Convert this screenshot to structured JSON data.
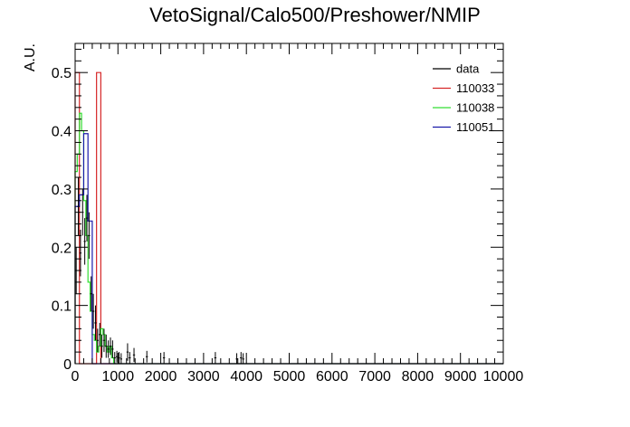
{
  "chart_data": {
    "type": "histogram",
    "title": "VetoSignal/Calo500/Preshower/NMIP",
    "ylabel": "A.U.",
    "xlabel": "",
    "xlim": [
      0,
      10000
    ],
    "ylim": [
      0,
      0.55
    ],
    "x_ticks": [
      0,
      1000,
      2000,
      3000,
      4000,
      5000,
      6000,
      7000,
      8000,
      9000,
      10000
    ],
    "y_ticks": [
      0,
      0.1,
      0.2,
      0.3,
      0.4,
      0.5
    ],
    "y_tick_labels": [
      "0",
      "0.1",
      "0.2",
      "0.3",
      "0.4",
      "0.5"
    ],
    "grid": false,
    "legend_position": "top-right",
    "series": [
      {
        "name": "data",
        "color": "#000000",
        "kind": "points",
        "points": [
          {
            "x": 25,
            "y": 0.16,
            "xerr": 25,
            "yerr": 0.04
          },
          {
            "x": 75,
            "y": 0.27,
            "xerr": 25,
            "yerr": 0.05
          },
          {
            "x": 125,
            "y": 0.19,
            "xerr": 25,
            "yerr": 0.04
          },
          {
            "x": 175,
            "y": 0.26,
            "xerr": 25,
            "yerr": 0.04
          },
          {
            "x": 225,
            "y": 0.21,
            "xerr": 25,
            "yerr": 0.04
          },
          {
            "x": 275,
            "y": 0.25,
            "xerr": 25,
            "yerr": 0.04
          },
          {
            "x": 325,
            "y": 0.22,
            "xerr": 25,
            "yerr": 0.04
          },
          {
            "x": 375,
            "y": 0.12,
            "xerr": 25,
            "yerr": 0.03
          },
          {
            "x": 425,
            "y": 0.09,
            "xerr": 25,
            "yerr": 0.03
          },
          {
            "x": 475,
            "y": 0.07,
            "xerr": 25,
            "yerr": 0.03
          },
          {
            "x": 525,
            "y": 0.04,
            "xerr": 25,
            "yerr": 0.02
          },
          {
            "x": 575,
            "y": 0.05,
            "xerr": 25,
            "yerr": 0.02
          },
          {
            "x": 625,
            "y": 0.03,
            "xerr": 25,
            "yerr": 0.02
          },
          {
            "x": 675,
            "y": 0.04,
            "xerr": 25,
            "yerr": 0.02
          },
          {
            "x": 725,
            "y": 0.03,
            "xerr": 25,
            "yerr": 0.02
          },
          {
            "x": 775,
            "y": 0.025,
            "xerr": 25,
            "yerr": 0.015
          },
          {
            "x": 825,
            "y": 0.03,
            "xerr": 25,
            "yerr": 0.015
          },
          {
            "x": 875,
            "y": 0.025,
            "xerr": 25,
            "yerr": 0.015
          },
          {
            "x": 925,
            "y": 0.01,
            "xerr": 25,
            "yerr": 0.01
          },
          {
            "x": 975,
            "y": 0.012,
            "xerr": 25,
            "yerr": 0.01
          },
          {
            "x": 1025,
            "y": 0.01,
            "xerr": 25,
            "yerr": 0.01
          },
          {
            "x": 1075,
            "y": 0.008,
            "xerr": 25,
            "yerr": 0.01
          },
          {
            "x": 1225,
            "y": 0.02,
            "xerr": 25,
            "yerr": 0.015
          },
          {
            "x": 1275,
            "y": 0.01,
            "xerr": 25,
            "yerr": 0.01
          },
          {
            "x": 1375,
            "y": 0.015,
            "xerr": 25,
            "yerr": 0.012
          },
          {
            "x": 1675,
            "y": 0.012,
            "xerr": 25,
            "yerr": 0.01
          },
          {
            "x": 2075,
            "y": 0.01,
            "xerr": 25,
            "yerr": 0.01
          },
          {
            "x": 3275,
            "y": 0.01,
            "xerr": 25,
            "yerr": 0.01
          },
          {
            "x": 3775,
            "y": 0.008,
            "xerr": 25,
            "yerr": 0.01
          },
          {
            "x": 3875,
            "y": 0.01,
            "xerr": 25,
            "yerr": 0.01
          },
          {
            "x": 3925,
            "y": 0.008,
            "xerr": 25,
            "yerr": 0.01
          }
        ]
      },
      {
        "name": "110033",
        "color": "#d62728",
        "kind": "step",
        "bins": [
          {
            "x0": 0,
            "x1": 100,
            "y": 0.5
          },
          {
            "x0": 100,
            "x1": 500,
            "y": 0
          },
          {
            "x0": 500,
            "x1": 600,
            "y": 0.5
          },
          {
            "x0": 600,
            "x1": 10000,
            "y": 0
          }
        ]
      },
      {
        "name": "110038",
        "color": "#33dd33",
        "kind": "step",
        "bins": [
          {
            "x0": 0,
            "x1": 50,
            "y": 0.33
          },
          {
            "x0": 50,
            "x1": 100,
            "y": 0.36
          },
          {
            "x0": 100,
            "x1": 150,
            "y": 0.43
          },
          {
            "x0": 150,
            "x1": 200,
            "y": 0.4
          },
          {
            "x0": 200,
            "x1": 250,
            "y": 0.28
          },
          {
            "x0": 250,
            "x1": 300,
            "y": 0.22
          },
          {
            "x0": 300,
            "x1": 350,
            "y": 0.14
          },
          {
            "x0": 350,
            "x1": 400,
            "y": 0.09
          },
          {
            "x0": 400,
            "x1": 450,
            "y": 0.05
          },
          {
            "x0": 450,
            "x1": 500,
            "y": 0.04
          },
          {
            "x0": 500,
            "x1": 550,
            "y": 0.02
          },
          {
            "x0": 550,
            "x1": 600,
            "y": 0.03
          },
          {
            "x0": 600,
            "x1": 650,
            "y": 0.06
          },
          {
            "x0": 650,
            "x1": 700,
            "y": 0.05
          },
          {
            "x0": 700,
            "x1": 750,
            "y": 0.03
          },
          {
            "x0": 750,
            "x1": 800,
            "y": 0.02
          },
          {
            "x0": 800,
            "x1": 850,
            "y": 0.03
          },
          {
            "x0": 850,
            "x1": 900,
            "y": 0.01
          },
          {
            "x0": 900,
            "x1": 10000,
            "y": 0
          }
        ]
      },
      {
        "name": "110051",
        "color": "#1a1aaa",
        "kind": "step",
        "bins": [
          {
            "x0": 0,
            "x1": 100,
            "y": 0.27
          },
          {
            "x0": 100,
            "x1": 200,
            "y": 0.29
          },
          {
            "x0": 200,
            "x1": 300,
            "y": 0.395
          },
          {
            "x0": 300,
            "x1": 400,
            "y": 0.245
          },
          {
            "x0": 400,
            "x1": 10000,
            "y": 0
          }
        ]
      }
    ]
  }
}
